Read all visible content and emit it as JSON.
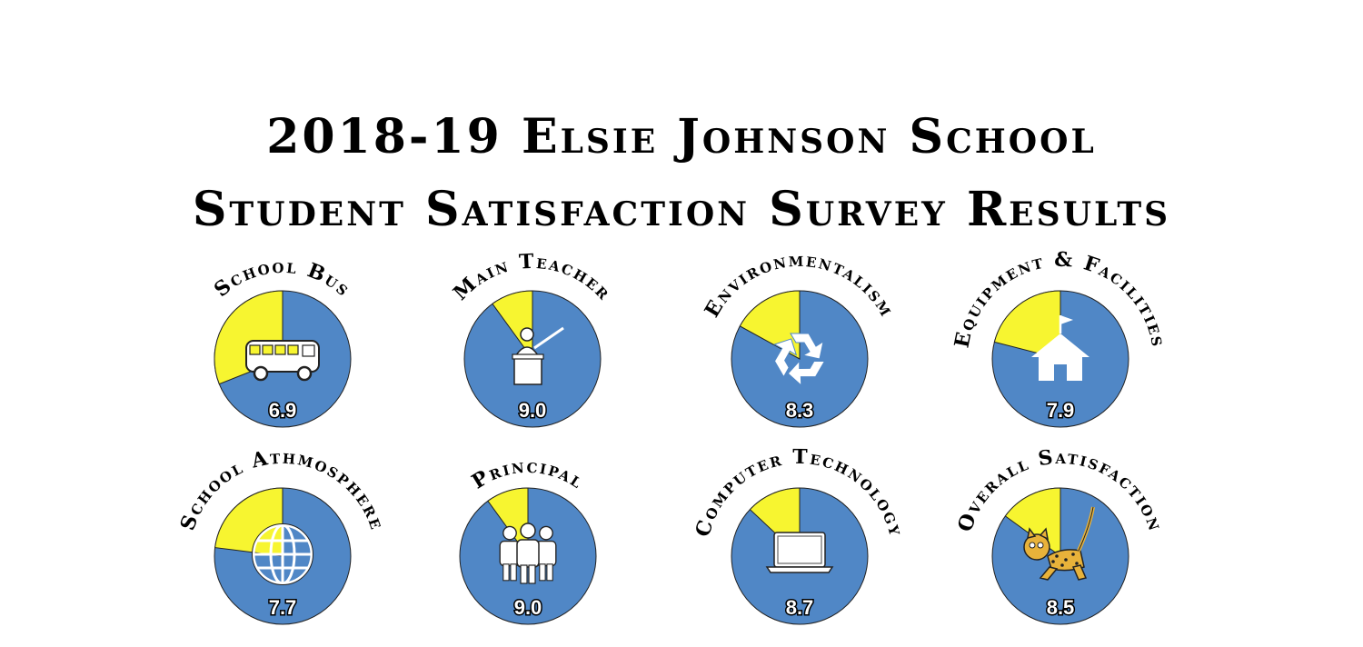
{
  "title": {
    "line1": "2018-19 Elsie Johnson School",
    "line2": "Student Satisfaction Survey Results"
  },
  "colors": {
    "satisfied": "#5087c6",
    "unsatisfied": "#f7f530",
    "outline": "#222222",
    "text": "#000000"
  },
  "chart_data": [
    {
      "type": "pie",
      "title": "School Bus",
      "value": 6.9,
      "scale_max": 10,
      "icon": "school-bus-icon"
    },
    {
      "type": "pie",
      "title": "Main Teacher",
      "value": 9.0,
      "scale_max": 10,
      "icon": "teacher-icon"
    },
    {
      "type": "pie",
      "title": "Environmentalism",
      "value": 8.3,
      "scale_max": 10,
      "icon": "recycle-icon"
    },
    {
      "type": "pie",
      "title": "Equipment & Facilities",
      "value": 7.9,
      "scale_max": 10,
      "icon": "schoolhouse-icon"
    },
    {
      "type": "pie",
      "title": "School Athmosphere",
      "value": 7.7,
      "scale_max": 10,
      "icon": "globe-icon"
    },
    {
      "type": "pie",
      "title": "Principal",
      "value": 9.0,
      "scale_max": 10,
      "icon": "people-icon"
    },
    {
      "type": "pie",
      "title": "Computer Technology",
      "value": 8.7,
      "scale_max": 10,
      "icon": "laptop-icon"
    },
    {
      "type": "pie",
      "title": "Overall Satisfaction",
      "value": 8.5,
      "scale_max": 10,
      "icon": "leopard-icon"
    }
  ]
}
